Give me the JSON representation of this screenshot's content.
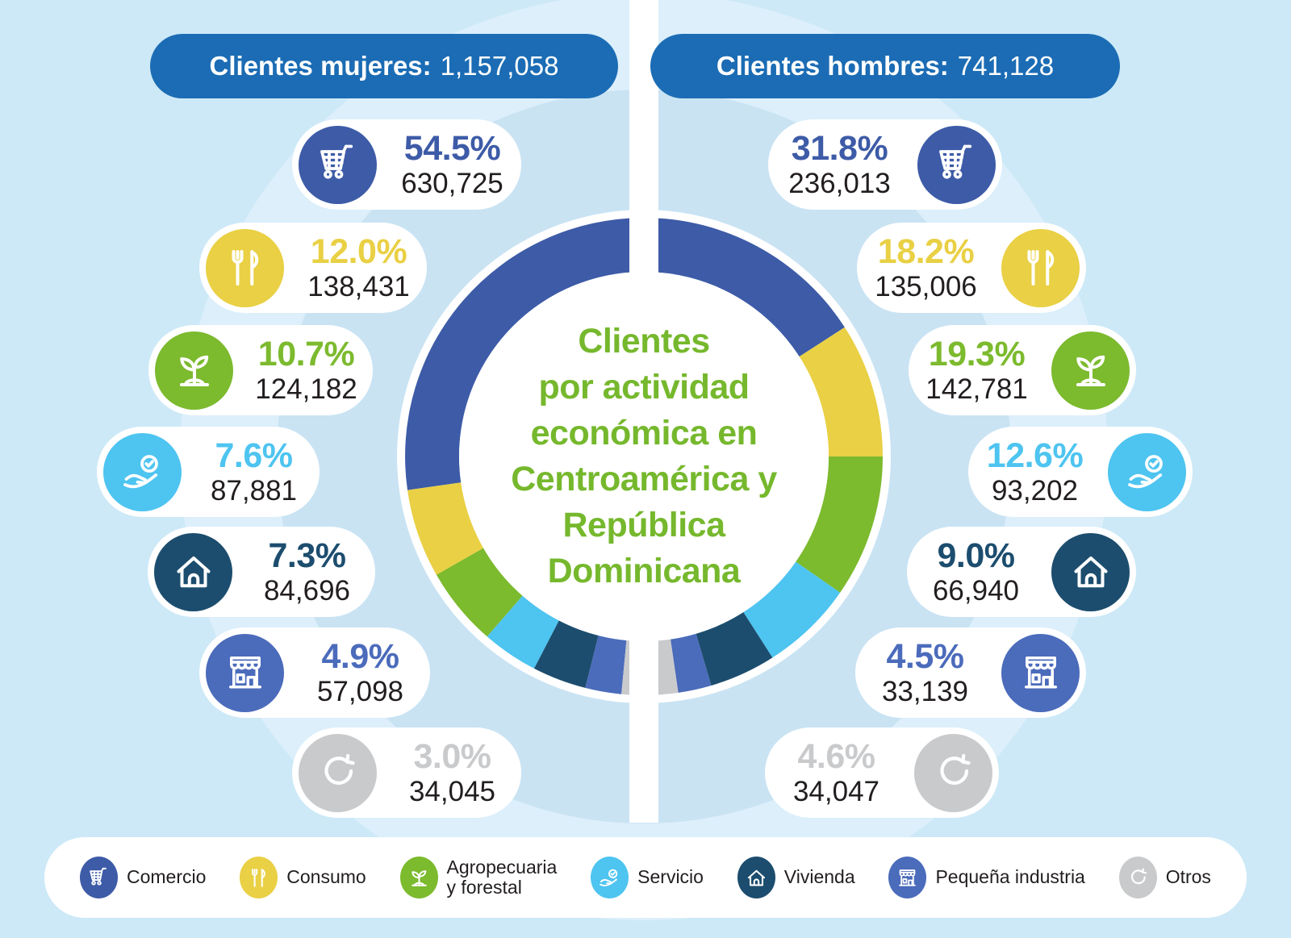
{
  "palette": {
    "background": "#cde9f7",
    "background_ring": "#dceffb",
    "background_circle": "#c9e3f3",
    "header_pill_blue": "#1b6cb4",
    "title_green": "#76b82d",
    "text_dark": "#221e1f"
  },
  "header": {
    "left": {
      "label": "Clientes mujeres:",
      "value": "1,157,058"
    },
    "right": {
      "label": "Clientes hombres:",
      "value": "741,128"
    }
  },
  "categories": [
    {
      "label": "Comercio",
      "legend_label": "Comercio",
      "color": "#3d5ba7",
      "icon": "shopping-cart-icon"
    },
    {
      "label": "Consumo",
      "legend_label": "Consumo",
      "color": "#e9d044",
      "icon": "utensils-icon"
    },
    {
      "label": "Agropecuaria y forestal",
      "legend_label": "Agropecuaria\ny forestal",
      "color": "#7cba2e",
      "icon": "sprout-icon"
    },
    {
      "label": "Servicio",
      "legend_label": "Servicio",
      "color": "#4ec4f0",
      "icon": "hand-check-icon"
    },
    {
      "label": "Vivienda",
      "legend_label": "Vivienda",
      "color": "#1c4d6e",
      "icon": "house-icon"
    },
    {
      "label": "Pequeña industria",
      "legend_label": "Pequeña industria",
      "color": "#4b6bbb",
      "icon": "storefront-icon"
    },
    {
      "label": "Otros",
      "legend_label": "Otros",
      "color": "#c9cacc",
      "icon": "refresh-arrow-icon"
    }
  ],
  "pills": {
    "left": [
      {
        "category_index": 0,
        "percent": "54.5%",
        "count": "630,725"
      },
      {
        "category_index": 1,
        "percent": "12.0%",
        "count": "138,431"
      },
      {
        "category_index": 2,
        "percent": "10.7%",
        "count": "124,182"
      },
      {
        "category_index": 3,
        "percent": "7.6%",
        "count": "87,881"
      },
      {
        "category_index": 4,
        "percent": "7.3%",
        "count": "84,696"
      },
      {
        "category_index": 5,
        "percent": "4.9%",
        "count": "57,098"
      },
      {
        "category_index": 6,
        "percent": "3.0%",
        "count": "34,045"
      }
    ],
    "right": [
      {
        "category_index": 0,
        "percent": "31.8%",
        "count": "236,013"
      },
      {
        "category_index": 1,
        "percent": "18.2%",
        "count": "135,006"
      },
      {
        "category_index": 2,
        "percent": "19.3%",
        "count": "142,781"
      },
      {
        "category_index": 3,
        "percent": "12.6%",
        "count": "93,202"
      },
      {
        "category_index": 4,
        "percent": "9.0%",
        "count": "66,940"
      },
      {
        "category_index": 5,
        "percent": "4.5%",
        "count": "33,139"
      },
      {
        "category_index": 6,
        "percent": "4.6%",
        "count": "34,047"
      }
    ]
  },
  "chart_data": {
    "type": "pie",
    "variant": "mirrored-half-donut",
    "title": "Clientes por actividad económica en Centroamérica y República Dominicana",
    "title_display": "Clientes\npor actividad\neconómica en\nCentroamérica y\nRepública\nDominicana",
    "categories": [
      "Comercio",
      "Consumo",
      "Agropecuaria y forestal",
      "Servicio",
      "Vivienda",
      "Pequeña industria",
      "Otros"
    ],
    "colors": [
      "#3d5ba7",
      "#e9d044",
      "#7cba2e",
      "#4ec4f0",
      "#1c4d6e",
      "#4b6bbb",
      "#c9cacc"
    ],
    "series": [
      {
        "name": "Clientes mujeres",
        "total": 1157058,
        "side": "left",
        "percent": [
          54.5,
          12.0,
          10.7,
          7.6,
          7.3,
          4.9,
          3.0
        ],
        "counts": [
          630725,
          138431,
          124182,
          87881,
          84696,
          57098,
          34045
        ]
      },
      {
        "name": "Clientes hombres",
        "total": 741128,
        "side": "right",
        "percent": [
          31.8,
          18.2,
          19.3,
          12.6,
          9.0,
          4.5,
          4.6
        ],
        "counts": [
          236013,
          135006,
          142781,
          93202,
          66940,
          33139,
          34047
        ]
      }
    ],
    "legend_position": "bottom"
  }
}
